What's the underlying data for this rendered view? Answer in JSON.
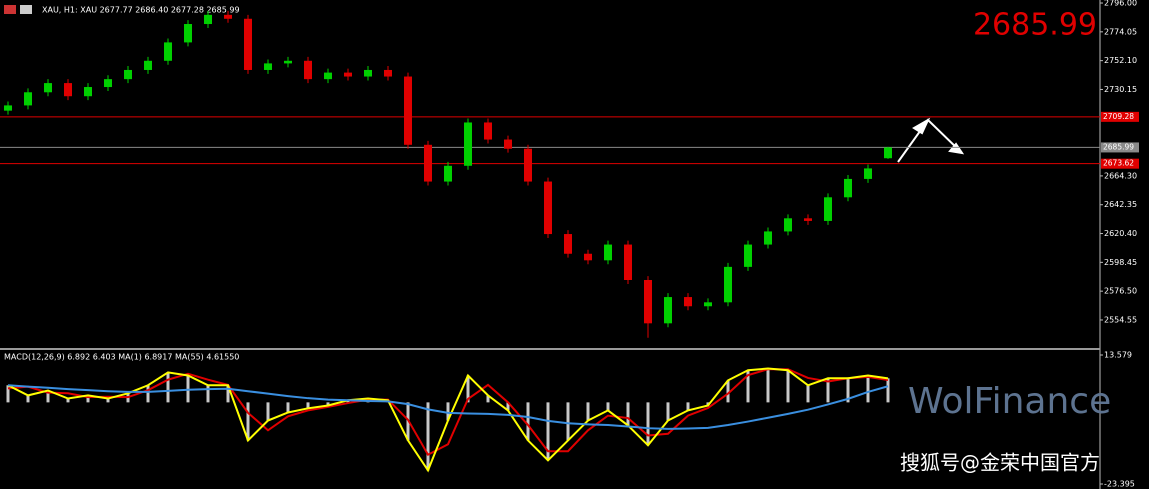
{
  "header": "XAU, H1: XAU 2677.77 2686.40 2677.28 2685.99",
  "last_price": 2685.99,
  "watermark": "WolFinance",
  "source": "搜狐号@金荣中国官方",
  "chart_data": [
    {
      "type": "candlestick",
      "up_color": "#00d000",
      "down_color": "#e00000",
      "open": [
        2714,
        2718,
        2728,
        2735,
        2725,
        2732,
        2738,
        2745,
        2752,
        2766,
        2780,
        2787,
        2784,
        2745,
        2750,
        2752,
        2738,
        2743,
        2740,
        2745,
        2740,
        2688,
        2660,
        2672,
        2705,
        2692,
        2685,
        2660,
        2620,
        2605,
        2600,
        2612,
        2585,
        2552,
        2572,
        2565,
        2568,
        2595,
        2612,
        2622,
        2632,
        2630,
        2648,
        2662,
        2677.77
      ],
      "high": [
        2721,
        2731,
        2738,
        2738,
        2735,
        2741,
        2748,
        2755,
        2769,
        2783,
        2790,
        2790,
        2787,
        2753,
        2755,
        2755,
        2746,
        2746,
        2748,
        2748,
        2743,
        2691,
        2675,
        2708,
        2708,
        2695,
        2688,
        2663,
        2623,
        2608,
        2615,
        2615,
        2588,
        2575,
        2575,
        2571,
        2598,
        2615,
        2625,
        2635,
        2635,
        2651,
        2665,
        2673,
        2686.4
      ],
      "low": [
        2711,
        2715,
        2725,
        2722,
        2722,
        2729,
        2735,
        2742,
        2749,
        2763,
        2777,
        2781,
        2742,
        2742,
        2747,
        2735,
        2735,
        2737,
        2737,
        2737,
        2685,
        2657,
        2657,
        2669,
        2689,
        2682,
        2657,
        2617,
        2602,
        2597,
        2597,
        2582,
        2541,
        2549,
        2562,
        2562,
        2565,
        2592,
        2609,
        2619,
        2627,
        2627,
        2645,
        2659,
        2677.28
      ],
      "close": [
        2718,
        2728,
        2735,
        2725,
        2732,
        2738,
        2745,
        2752,
        2766,
        2780,
        2787,
        2784,
        2745,
        2750,
        2752,
        2738,
        2743,
        2740,
        2745,
        2740,
        2688,
        2660,
        2672,
        2705,
        2692,
        2685,
        2660,
        2620,
        2605,
        2600,
        2612,
        2585,
        2552,
        2572,
        2565,
        2568,
        2595,
        2612,
        2622,
        2632,
        2630,
        2648,
        2662,
        2670,
        2685.99
      ],
      "ylim": [
        2533.2,
        2798.3
      ],
      "yticks": [
        {
          "value": 2796.0,
          "label": "2796.00"
        },
        {
          "value": 2774.05,
          "label": "2774.05"
        },
        {
          "value": 2752.1,
          "label": "2752.10"
        },
        {
          "value": 2730.15,
          "label": "2730.15"
        },
        {
          "value": 2664.3,
          "label": "2664.30"
        },
        {
          "value": 2642.35,
          "label": "2642.35"
        },
        {
          "value": 2620.4,
          "label": "2620.40"
        },
        {
          "value": 2598.45,
          "label": "2598.45"
        },
        {
          "value": 2576.5,
          "label": "2576.50"
        },
        {
          "value": 2554.55,
          "label": "2554.55"
        }
      ],
      "levels": [
        {
          "value": 2709.28,
          "color": "#e00000"
        },
        {
          "value": 2685.99,
          "color": "#8a8a8a"
        },
        {
          "value": 2673.62,
          "color": "#e00000"
        }
      ]
    },
    {
      "type": "macd",
      "title": "MACD(12,26,9) 6.892 6.403 MA(1) 6.8917 MA(55) 4.61550",
      "ylim": [
        -24.83,
        15.01
      ],
      "yticks": [
        13.579,
        -23.395
      ],
      "series": [
        {
          "style": "histogram",
          "color": "#c8c8c8",
          "values": [
            4.9,
            2,
            3.4,
            1.1,
            2,
            1.1,
            2.6,
            4.9,
            8.6,
            7.7,
            4.9,
            4.9,
            -10.9,
            -5.2,
            -2.9,
            -1.7,
            -0.9,
            0.6,
            1.1,
            0.6,
            -10.9,
            -19.5,
            -5.2,
            7.7,
            2,
            -2.3,
            -10.9,
            -16.6,
            -10.9,
            -5.2,
            -2.3,
            -6.6,
            -12.3,
            -5.2,
            -2.3,
            -0.9,
            6.3,
            9.2,
            9.7,
            9.2,
            4.9,
            6.9,
            6.9,
            7.7,
            6.892
          ]
        },
        {
          "style": "line",
          "color": "#e00000",
          "values": [
            4,
            4.5,
            2.8,
            2.6,
            1.5,
            1.6,
            1.5,
            3.5,
            6.5,
            8.2,
            6.5,
            5,
            -3,
            -8,
            -4,
            -2.3,
            -1.3,
            -0.2,
            0.8,
            0.8,
            -5,
            -15,
            -12,
            1,
            5,
            0,
            -6.5,
            -14,
            -14,
            -8,
            -3.8,
            -4.5,
            -9.5,
            -9,
            -3.8,
            -1.6,
            2.5,
            7.8,
            9.5,
            9.5,
            7,
            6,
            6.9,
            7.3,
            6.403
          ]
        },
        {
          "style": "line",
          "color": "#ffff00",
          "values": [
            4.9,
            2,
            3.4,
            1.1,
            2,
            1.1,
            2.6,
            4.9,
            8.6,
            7.7,
            4.9,
            4.9,
            -10.9,
            -5.2,
            -2.9,
            -1.7,
            -0.9,
            0.6,
            1.1,
            0.6,
            -10.9,
            -19.5,
            -5.2,
            7.7,
            2,
            -2.3,
            -10.9,
            -16.6,
            -10.9,
            -5.2,
            -2.3,
            -6.6,
            -12.3,
            -5.2,
            -2.3,
            -0.9,
            6.3,
            9.2,
            9.7,
            9.2,
            4.9,
            6.9,
            6.9,
            7.7,
            6.8917
          ]
        },
        {
          "style": "line",
          "color": "#3a8fe0",
          "values": [
            4.9,
            4.5,
            4.2,
            3.8,
            3.5,
            3.2,
            3,
            3,
            3.3,
            3.6,
            3.8,
            3.9,
            3.2,
            2.5,
            1.8,
            1.2,
            0.8,
            0.6,
            0.4,
            0.3,
            -0.5,
            -2,
            -3,
            -3.2,
            -3.3,
            -3.6,
            -4.2,
            -5.3,
            -6,
            -6.3,
            -6.5,
            -6.9,
            -7.4,
            -7.6,
            -7.5,
            -7.3,
            -6.5,
            -5.5,
            -4.4,
            -3.3,
            -2.1,
            -0.6,
            1,
            3,
            4.6155
          ]
        }
      ]
    }
  ]
}
